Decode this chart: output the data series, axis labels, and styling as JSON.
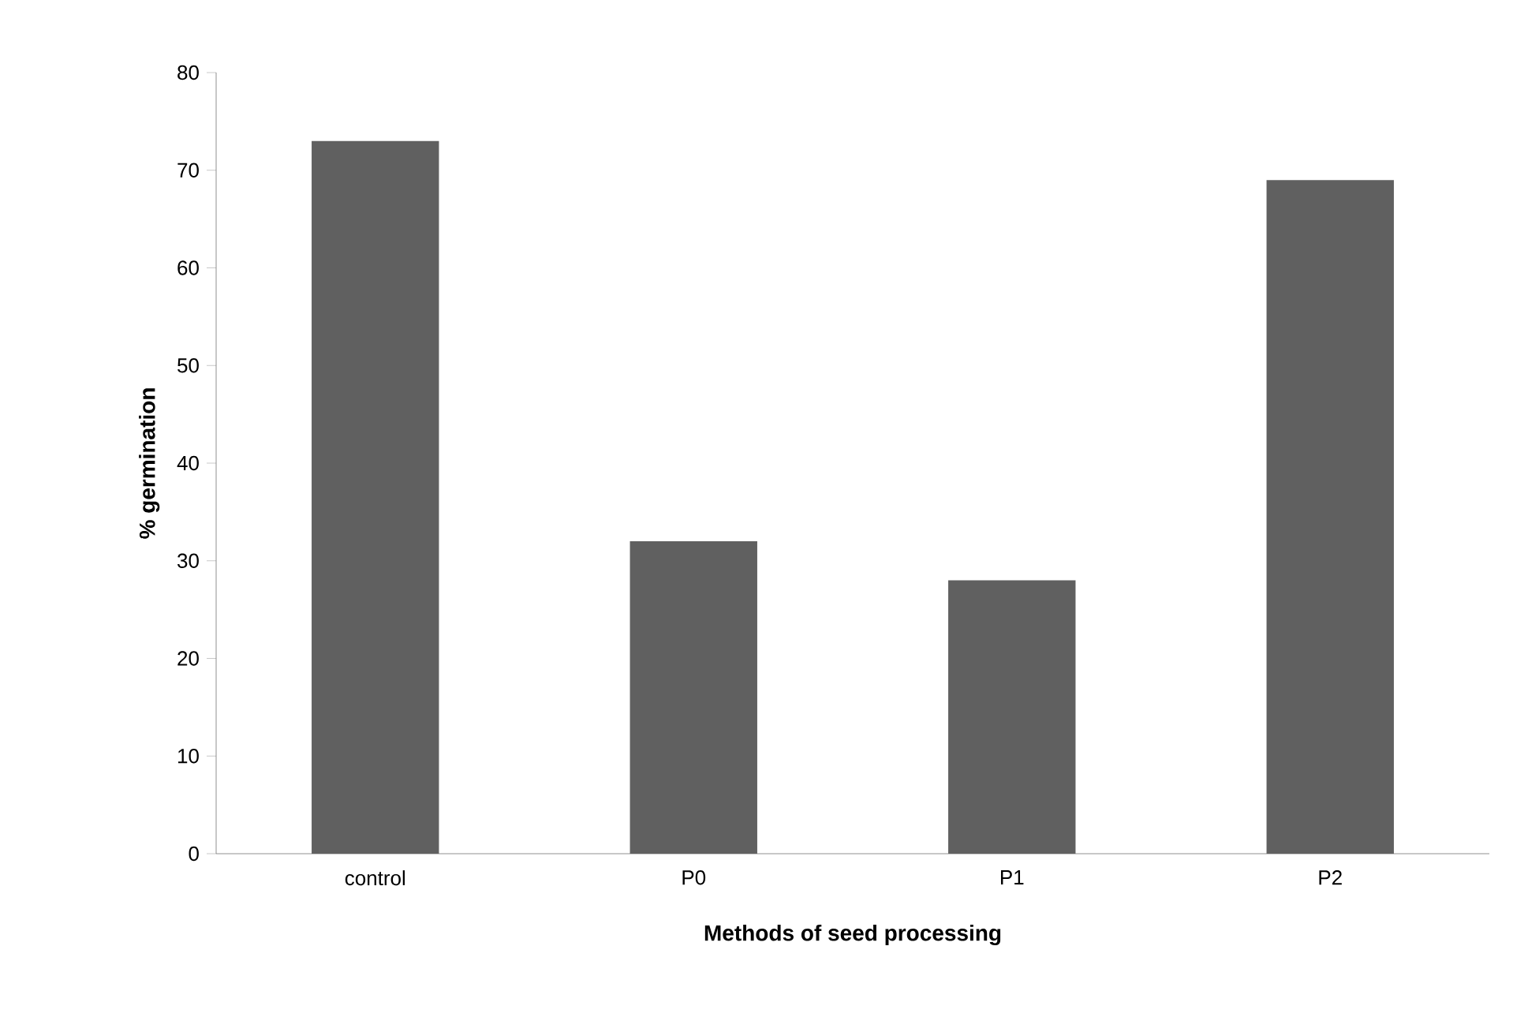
{
  "chart_data": {
    "type": "bar",
    "xlabel": "Methods of seed processing",
    "ylabel": "% germination",
    "categories": [
      "control",
      "P0",
      "P1",
      "P2"
    ],
    "values": [
      73,
      32,
      28,
      69
    ],
    "color": "#606060",
    "ylim": [
      0,
      80
    ],
    "yticks": [
      0,
      10,
      20,
      30,
      40,
      50,
      60,
      70,
      80
    ]
  }
}
